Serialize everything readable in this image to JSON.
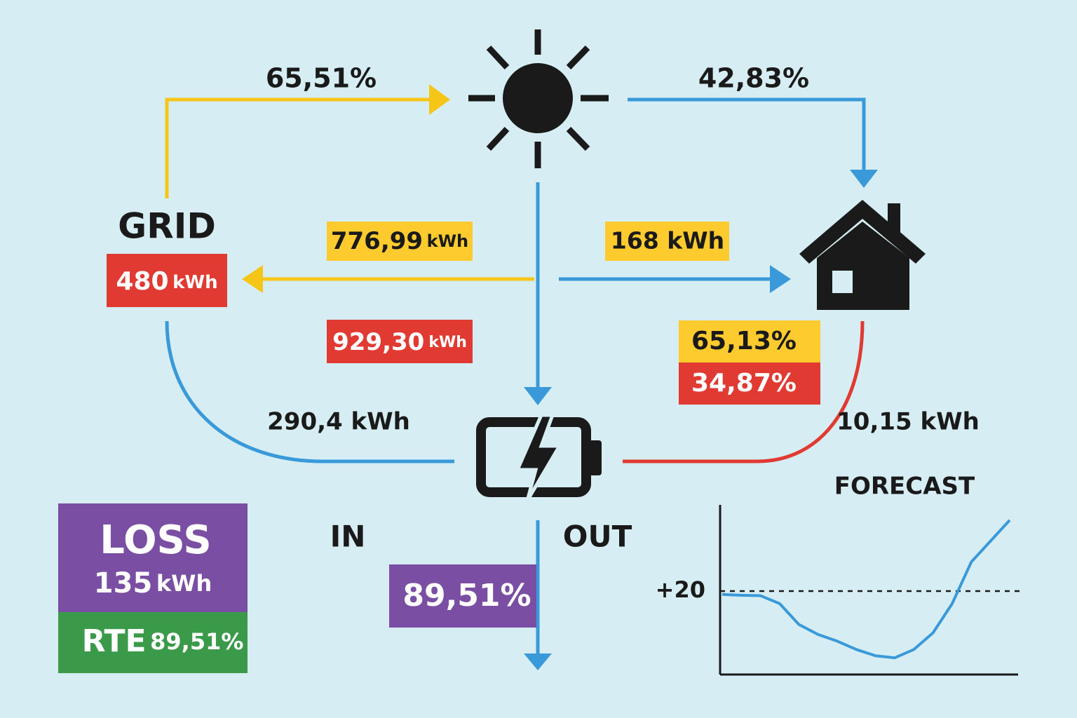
{
  "grid": {
    "label": "GRID",
    "energy": {
      "value": "480",
      "unit": "kWh"
    }
  },
  "flows": {
    "grid_to_sun": "65,51%",
    "sun_to_home": "42,83%",
    "sun_to_grid": {
      "value": "776,99",
      "unit": "kWh"
    },
    "sun_to_home_energy": "168 kWh",
    "battery_charge": {
      "value": "929,30",
      "unit": "kWh"
    },
    "grid_to_battery": "290,4 kWh",
    "battery_to_home": "10,15 kWh"
  },
  "home_split": [
    "65,13%",
    "34,87%"
  ],
  "battery": {
    "in": "IN",
    "out": "OUT",
    "efficiency": "89,51%"
  },
  "loss": {
    "label": "LOSS",
    "value": "135",
    "unit": "kWh",
    "rte_label": "RTE",
    "rte": "89,51%"
  },
  "forecast": {
    "title": "FORECAST",
    "chart_data": {
      "type": "line",
      "values": [
        19.2,
        19,
        18.9,
        17,
        12,
        9.6,
        8,
        6,
        4.5,
        4,
        6,
        10,
        17,
        27,
        32,
        37
      ],
      "color": "#3a9ad9",
      "ylim": [
        0,
        40
      ],
      "yticks": [
        {
          "value": 20,
          "label": "+20"
        }
      ],
      "grid": true
    }
  }
}
